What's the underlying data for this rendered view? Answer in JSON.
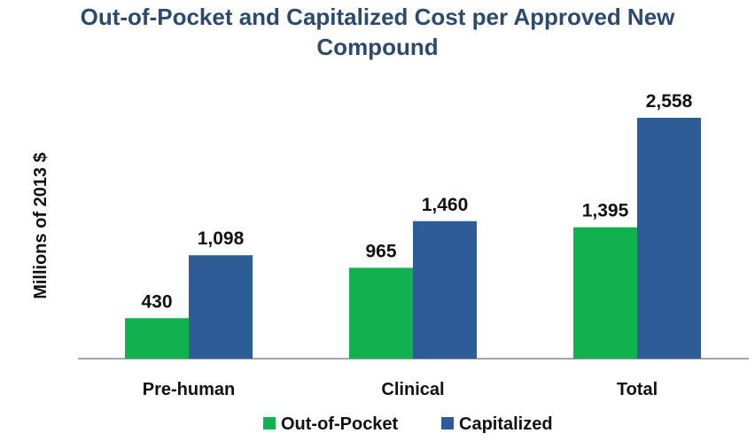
{
  "chart_data": {
    "type": "bar",
    "title": "Out-of-Pocket and Capitalized Cost per Approved New Compound",
    "title_lines": [
      "Out-of-Pocket and Capitalized Cost per Approved New",
      "Compound"
    ],
    "xlabel": "",
    "ylabel": "Millions of 2013 $",
    "ylim": [
      0,
      2558
    ],
    "grid": false,
    "legend_position": "bottom",
    "categories": [
      "Pre-human",
      "Clinical",
      "Total"
    ],
    "series": [
      {
        "name": "Out-of-Pocket",
        "color": "#11B14F",
        "values": [
          430,
          965,
          1395
        ],
        "labels": [
          "430",
          "965",
          "1,395"
        ]
      },
      {
        "name": "Capitalized",
        "color": "#2E5C96",
        "values": [
          1098,
          1460,
          2558
        ],
        "labels": [
          "1,098",
          "1,460",
          "2,558"
        ]
      }
    ]
  }
}
